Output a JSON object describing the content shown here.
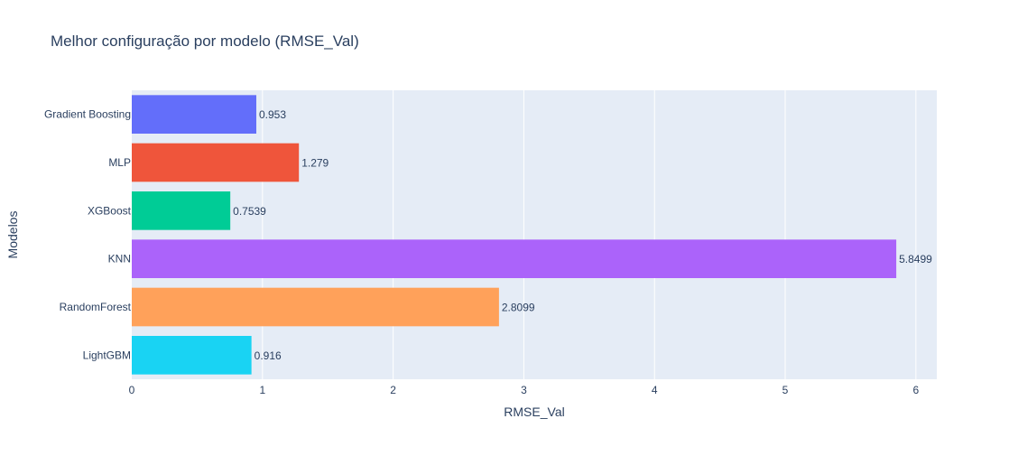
{
  "chart_data": {
    "type": "bar",
    "orientation": "horizontal",
    "title": "Melhor configuração por modelo (RMSE_Val)",
    "xlabel": "RMSE_Val",
    "ylabel": "Modelos",
    "xlim": [
      0,
      6.16
    ],
    "xticks": [
      "0",
      "1",
      "2",
      "3",
      "4",
      "5",
      "6"
    ],
    "xtick_values": [
      0,
      1,
      2,
      3,
      4,
      5,
      6
    ],
    "grid": true,
    "categories": [
      "Gradient Boosting",
      "MLP",
      "XGBoost",
      "KNN",
      "RandomForest",
      "LightGBM"
    ],
    "values": [
      0.953,
      1.279,
      0.7539,
      5.8499,
      2.8099,
      0.916
    ],
    "value_labels": [
      "0.953",
      "1.279",
      "0.7539",
      "5.8499",
      "2.8099",
      "0.916"
    ],
    "colors": [
      "#636efa",
      "#ef553b",
      "#00cc96",
      "#ab63fa",
      "#ffa15a",
      "#19d3f3"
    ],
    "plot_background": "#e5ecf6",
    "grid_color": "#ffffff",
    "text_color": "#2a3f5f"
  }
}
